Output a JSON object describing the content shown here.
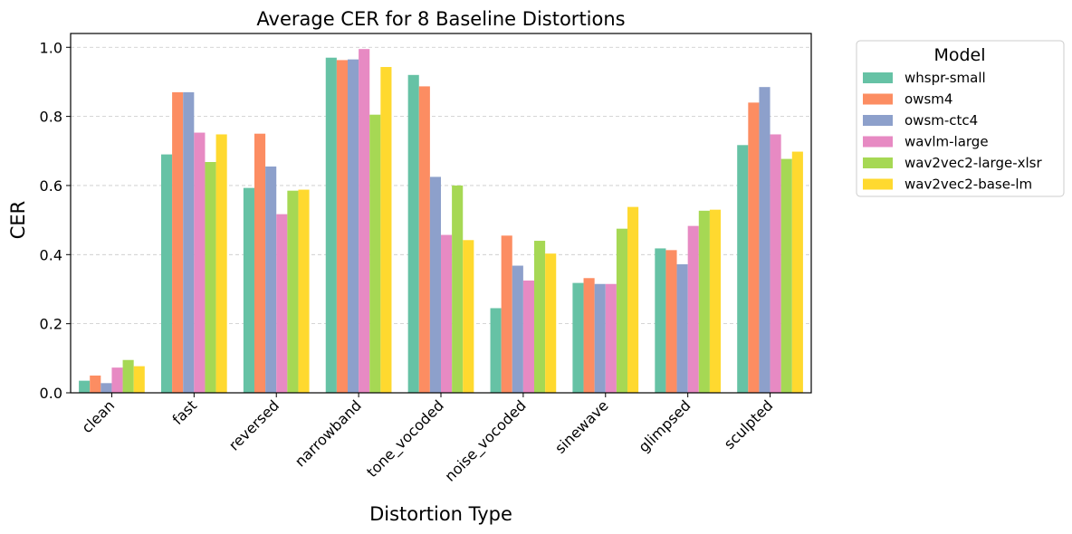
{
  "chart_data": {
    "type": "bar",
    "title": "Average CER for 8 Baseline Distortions",
    "xlabel": "Distortion Type",
    "ylabel": "CER",
    "ylim": [
      0,
      1.04
    ],
    "yticks": [
      "0.0",
      "0.2",
      "0.4",
      "0.6",
      "0.8",
      "1.0"
    ],
    "grid": "horizontal dashed",
    "legend_title": "Model",
    "legend_position": "outside-right-top",
    "categories": [
      "clean",
      "fast",
      "reversed",
      "narrowband",
      "tone_vocoded",
      "noise_vocoded",
      "sinewave",
      "glimpsed",
      "sculpted"
    ],
    "series": [
      {
        "name": "whspr-small",
        "color": "#66c2a5",
        "values": [
          0.035,
          0.69,
          0.593,
          0.97,
          0.92,
          0.245,
          0.318,
          0.418,
          0.717
        ]
      },
      {
        "name": "owsm4",
        "color": "#fc8d62",
        "values": [
          0.05,
          0.87,
          0.75,
          0.963,
          0.887,
          0.455,
          0.332,
          0.413,
          0.84
        ]
      },
      {
        "name": "owsm-ctc4",
        "color": "#8da0cb",
        "values": [
          0.028,
          0.87,
          0.655,
          0.965,
          0.625,
          0.368,
          0.315,
          0.372,
          0.885
        ]
      },
      {
        "name": "wavlm-large",
        "color": "#e78ac3",
        "values": [
          0.073,
          0.753,
          0.517,
          0.995,
          0.457,
          0.325,
          0.315,
          0.483,
          0.748
        ]
      },
      {
        "name": "wav2vec2-large-xlsr",
        "color": "#a6d854",
        "values": [
          0.095,
          0.668,
          0.585,
          0.805,
          0.6,
          0.44,
          0.475,
          0.527,
          0.677
        ]
      },
      {
        "name": "wav2vec2-base-lm",
        "color": "#ffd92f",
        "values": [
          0.077,
          0.748,
          0.588,
          0.943,
          0.442,
          0.403,
          0.538,
          0.53,
          0.698
        ]
      }
    ]
  }
}
